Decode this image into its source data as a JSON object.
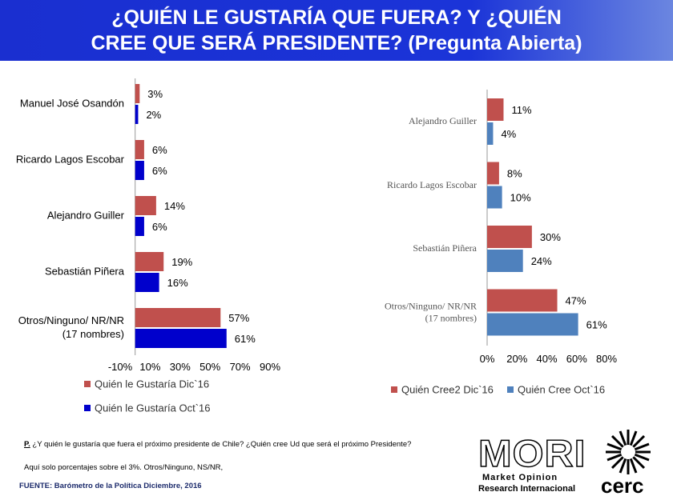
{
  "header": {
    "title_lines": [
      "¿QUIÉN LE GUSTARÍA  QUE FUERA? Y ¿QUIÉN",
      "CREE QUE SERÁ PRESIDENTE? (Pregunta Abierta)"
    ]
  },
  "chart_data": [
    {
      "type": "bar",
      "orientation": "horizontal",
      "categories": [
        "Manuel José Osandón",
        "Ricardo Lagos Escobar",
        "Alejandro Guiller",
        "Sebastián Piñera",
        "Otros/Ninguno/ NR/NR\n(17 nombres)"
      ],
      "series": [
        {
          "name": "Quién le  Gustaría Dic`16",
          "color": "#c0504d",
          "values": [
            3,
            6,
            14,
            19,
            57
          ],
          "value_labels": [
            "3%",
            "6%",
            "14%",
            "19%",
            "57%"
          ]
        },
        {
          "name": "Quién le  Gustaría Oct`16",
          "color": "#0000cc",
          "values": [
            2,
            6,
            6,
            16,
            61
          ],
          "value_labels": [
            "2%",
            "6%",
            "6%",
            "16%",
            "61%"
          ]
        }
      ],
      "xlim": [
        -10,
        90
      ],
      "xticks": [
        {
          "value": -10,
          "label": "-10%"
        },
        {
          "value": 10,
          "label": "10%"
        },
        {
          "value": 30,
          "label": "30%"
        },
        {
          "value": 50,
          "label": "50%"
        },
        {
          "value": 70,
          "label": "70%"
        },
        {
          "value": 90,
          "label": "90%"
        }
      ],
      "legend": "bottom-left",
      "grid": false
    },
    {
      "type": "bar",
      "orientation": "horizontal",
      "categories": [
        "Alejandro Guiller",
        "Ricardo Lagos Escobar",
        "Sebastián Piñera",
        "Otros/Ninguno/ NR/NR\n(17 nombres)"
      ],
      "series": [
        {
          "name": "Quién Cree2 Dic`16",
          "color": "#c0504d",
          "values": [
            11,
            8,
            30,
            47
          ],
          "value_labels": [
            "11%",
            "8%",
            "30%",
            "47%"
          ]
        },
        {
          "name": "Quién Cree Oct`16",
          "color": "#4f81bd",
          "values": [
            4,
            10,
            24,
            61
          ],
          "value_labels": [
            "4%",
            "10%",
            "24%",
            "61%"
          ]
        }
      ],
      "xlim": [
        0,
        80
      ],
      "xticks": [
        {
          "value": 0,
          "label": "0%"
        },
        {
          "value": 20,
          "label": "20%"
        },
        {
          "value": 40,
          "label": "40%"
        },
        {
          "value": 60,
          "label": "60%"
        },
        {
          "value": 80,
          "label": "80%"
        }
      ],
      "legend": "bottom",
      "grid": false
    }
  ],
  "footer": {
    "question_label": "P.",
    "question": " ¿Y quién le gustaría que fuera el próximo presidente de Chile? ¿Quién cree Ud que será el próximo Presidente?",
    "note": "Aquí solo porcentajes sobre el 3%. Otros/Ninguno, NS/NR,",
    "source": "FUENTE: Barómetro de la Política Diciembre, 2016"
  },
  "logos": {
    "mori": "MORI",
    "mori_line1": "Market Opinion",
    "mori_line2": "Research Internacional",
    "cerc": "cerc"
  }
}
